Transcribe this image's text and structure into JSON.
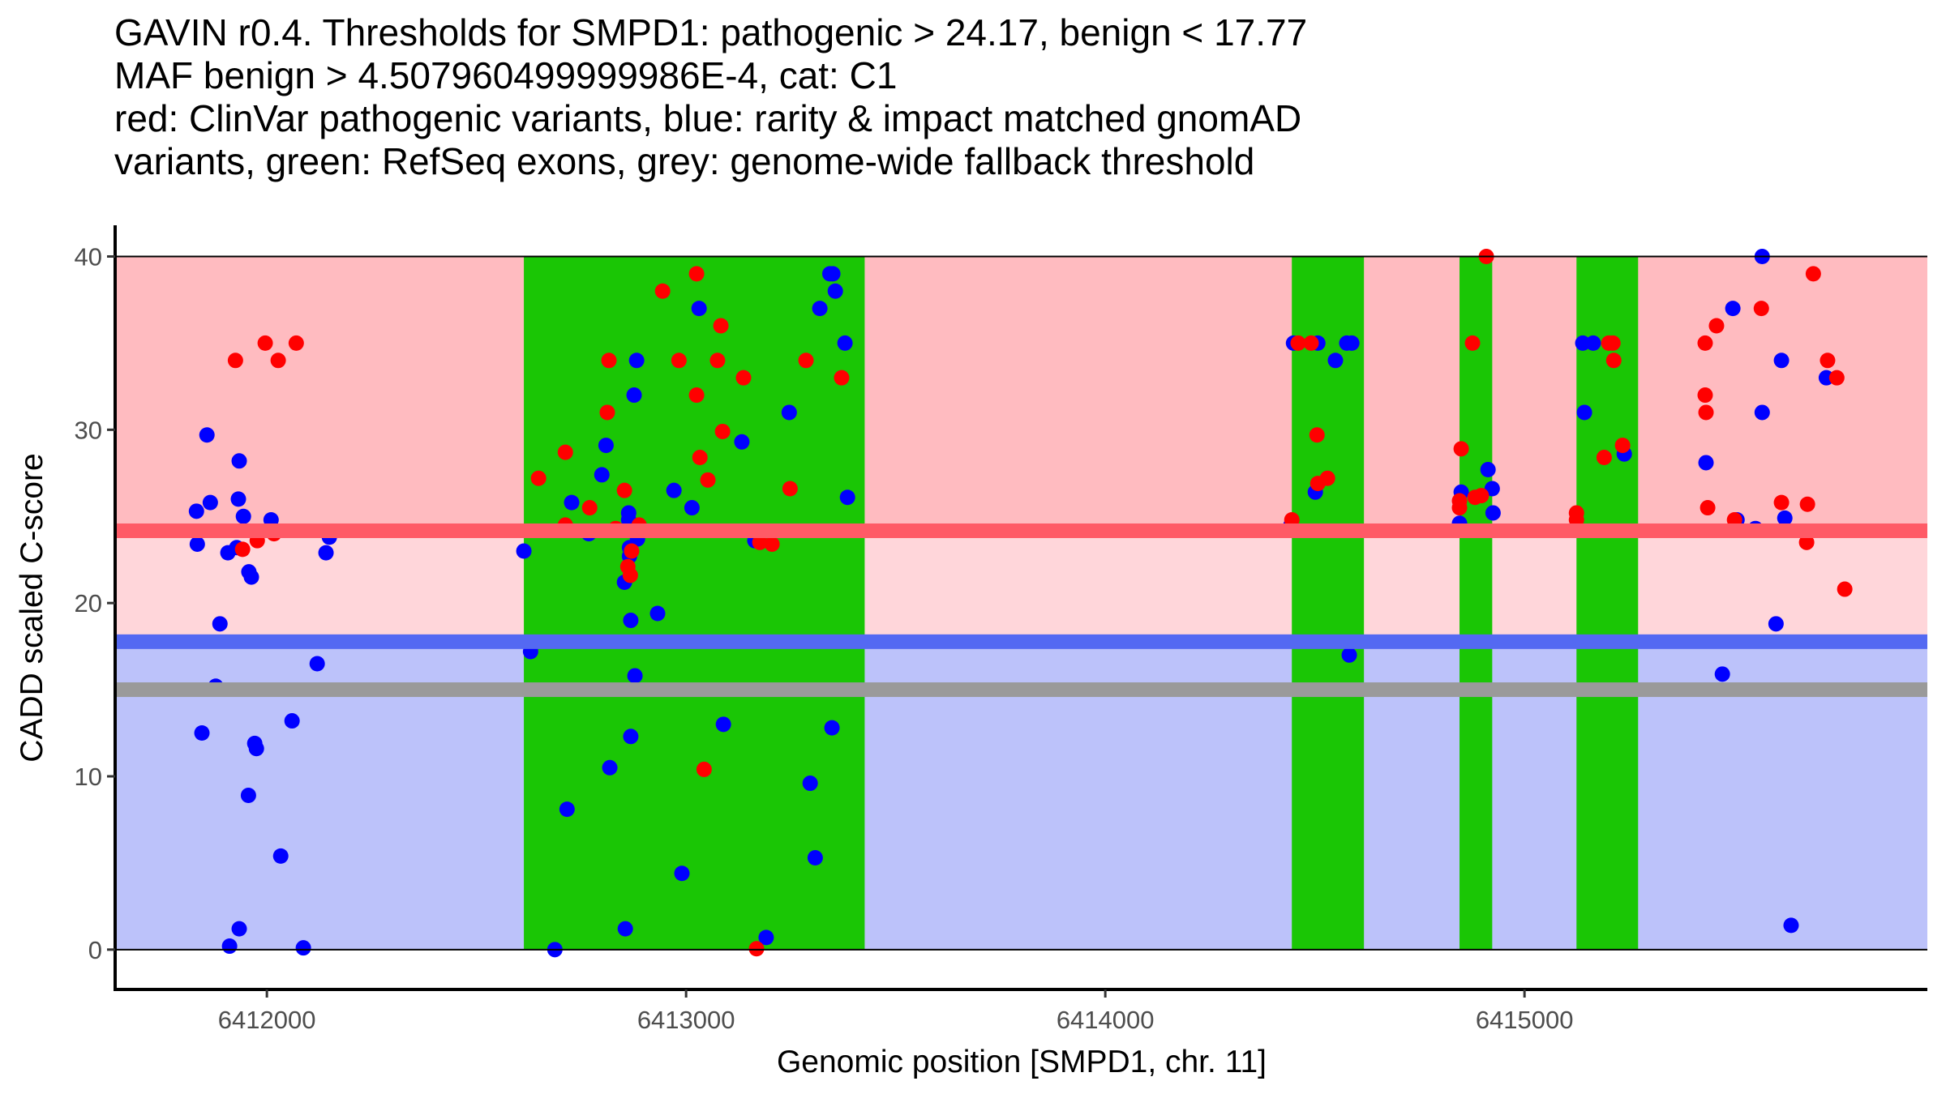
{
  "chart_data": {
    "type": "scatter",
    "title": [
      "GAVIN r0.4. Thresholds for SMPD1: pathogenic > 24.17, benign < 17.77",
      "MAF benign > 4.507960499999986E-4, cat: C1",
      "red: ClinVar pathogenic variants, blue: rarity & impact matched gnomAD",
      "variants, green: RefSeq exons, grey: genome-wide fallback threshold"
    ],
    "xlabel": "Genomic position [SMPD1, chr. 11]",
    "ylabel": "CADD scaled C-score",
    "xlim": [
      6411638,
      6415961
    ],
    "ylim": [
      -2.3,
      41.8
    ],
    "x_ticks": [
      6412000,
      6413000,
      6414000,
      6415000
    ],
    "x_tick_labels": [
      "6412000",
      "6413000",
      "6414000",
      "6415000"
    ],
    "y_ticks": [
      0,
      10,
      20,
      30,
      40
    ],
    "y_tick_labels": [
      "0",
      "10",
      "20",
      "30",
      "40"
    ],
    "grid": false,
    "legend": "none",
    "thresholds": {
      "pathogenic": 24.17,
      "benign": 17.77,
      "genome_wide_fallback": 15.0,
      "score_max": 40,
      "score_min": 0
    },
    "exons": [
      [
        6412613,
        6413426
      ],
      [
        6414445,
        6414617
      ],
      [
        6414845,
        6414923
      ],
      [
        6415124,
        6415271
      ]
    ],
    "colors": {
      "pathogenic_zone": "#FFBBC0",
      "pathogenic_line": "#FF5A66",
      "vus_zone": "#FFD6DA",
      "benign_line": "#5469F2",
      "benign_zone": "#BCC2FA",
      "fallback_line": "#9A9A9A",
      "exon": "#1AC605",
      "pathogenic_point": "#FF0000",
      "population_point": "#0000FF"
    },
    "series": [
      {
        "name": "gnomAD",
        "color": "#0000FF",
        "points": [
          [
            6411857,
            29.7
          ],
          [
            6411934,
            28.2
          ],
          [
            6411865,
            25.8
          ],
          [
            6411832,
            25.3
          ],
          [
            6411932,
            26.0
          ],
          [
            6411944,
            25.0
          ],
          [
            6412010,
            24.8
          ],
          [
            6411834,
            23.4
          ],
          [
            6412149,
            23.8
          ],
          [
            6412141,
            22.9
          ],
          [
            6411928,
            23.2
          ],
          [
            6411907,
            22.9
          ],
          [
            6411957,
            21.8
          ],
          [
            6411963,
            21.5
          ],
          [
            6411888,
            18.8
          ],
          [
            6412120,
            16.5
          ],
          [
            6411878,
            15.2
          ],
          [
            6412060,
            13.2
          ],
          [
            6411845,
            12.5
          ],
          [
            6411971,
            11.9
          ],
          [
            6411975,
            11.6
          ],
          [
            6411956,
            8.9
          ],
          [
            6412033,
            5.4
          ],
          [
            6411934,
            1.2
          ],
          [
            6411911,
            0.2
          ],
          [
            6412087,
            0.1
          ],
          [
            6413031,
            37.0
          ],
          [
            6412882,
            34.0
          ],
          [
            6412876,
            32.0
          ],
          [
            6413246,
            31.0
          ],
          [
            6413133,
            29.3
          ],
          [
            6412809,
            29.1
          ],
          [
            6412799,
            27.4
          ],
          [
            6412971,
            26.5
          ],
          [
            6413385,
            26.1
          ],
          [
            6412727,
            25.8
          ],
          [
            6413014,
            25.5
          ],
          [
            6412863,
            25.2
          ],
          [
            6412863,
            24.8
          ],
          [
            6412768,
            24.0
          ],
          [
            6412884,
            23.7
          ],
          [
            6413164,
            23.6
          ],
          [
            6412865,
            23.2
          ],
          [
            6412613,
            23.0
          ],
          [
            6412865,
            22.7
          ],
          [
            6412853,
            21.2
          ],
          [
            6413350,
            39.0
          ],
          [
            6413343,
            39.0
          ],
          [
            6413356,
            38.0
          ],
          [
            6413319,
            37.0
          ],
          [
            6413379,
            35.0
          ],
          [
            6412868,
            19.0
          ],
          [
            6412932,
            19.4
          ],
          [
            6412629,
            17.2
          ],
          [
            6412878,
            15.8
          ],
          [
            6413089,
            13.0
          ],
          [
            6413348,
            12.8
          ],
          [
            6412868,
            12.3
          ],
          [
            6412818,
            10.5
          ],
          [
            6413296,
            9.6
          ],
          [
            6412716,
            8.1
          ],
          [
            6413308,
            5.3
          ],
          [
            6412990,
            4.4
          ],
          [
            6412855,
            1.2
          ],
          [
            6413191,
            0.7
          ],
          [
            6412687,
            0.0
          ],
          [
            6414449,
            35.0
          ],
          [
            6414507,
            35.0
          ],
          [
            6414576,
            35.0
          ],
          [
            6414588,
            35.0
          ],
          [
            6414549,
            34.0
          ],
          [
            6414501,
            26.4
          ],
          [
            6414443,
            24.5
          ],
          [
            6414582,
            17.0
          ],
          [
            6414913,
            27.7
          ],
          [
            6414923,
            26.6
          ],
          [
            6414849,
            26.4
          ],
          [
            6414925,
            25.2
          ],
          [
            6414845,
            24.6
          ],
          [
            6415139,
            35.0
          ],
          [
            6415164,
            35.0
          ],
          [
            6415143,
            31.0
          ],
          [
            6415238,
            28.6
          ],
          [
            6415567,
            40.0
          ],
          [
            6415497,
            37.0
          ],
          [
            6415613,
            34.0
          ],
          [
            6415720,
            33.0
          ],
          [
            6415567,
            31.0
          ],
          [
            6415433,
            28.1
          ],
          [
            6415507,
            24.8
          ],
          [
            6415621,
            24.9
          ],
          [
            6415551,
            24.3
          ],
          [
            6415600,
            18.8
          ],
          [
            6415472,
            15.9
          ],
          [
            6415636,
            1.4
          ]
        ]
      },
      {
        "name": "ClinVar pathogenic",
        "color": "#FF0000",
        "points": [
          [
            6411996,
            35.0
          ],
          [
            6412070,
            35.0
          ],
          [
            6411925,
            34.0
          ],
          [
            6412027,
            34.0
          ],
          [
            6412017,
            24.0
          ],
          [
            6411977,
            23.6
          ],
          [
            6411942,
            23.1
          ],
          [
            6413025,
            39.0
          ],
          [
            6412944,
            38.0
          ],
          [
            6413083,
            36.0
          ],
          [
            6412816,
            34.0
          ],
          [
            6412983,
            34.0
          ],
          [
            6413075,
            34.0
          ],
          [
            6413286,
            34.0
          ],
          [
            6413137,
            33.0
          ],
          [
            6413371,
            33.0
          ],
          [
            6413025,
            32.0
          ],
          [
            6412812,
            31.0
          ],
          [
            6413087,
            29.9
          ],
          [
            6412712,
            28.7
          ],
          [
            6413033,
            28.4
          ],
          [
            6413052,
            27.1
          ],
          [
            6412648,
            27.2
          ],
          [
            6412853,
            26.5
          ],
          [
            6413248,
            26.6
          ],
          [
            6412770,
            25.5
          ],
          [
            6412712,
            24.5
          ],
          [
            6412888,
            24.5
          ],
          [
            6412832,
            24.3
          ],
          [
            6413176,
            23.5
          ],
          [
            6413205,
            23.4
          ],
          [
            6412870,
            23.0
          ],
          [
            6412861,
            22.1
          ],
          [
            6412867,
            21.6
          ],
          [
            6413043,
            10.4
          ],
          [
            6413168,
            0.05
          ],
          [
            6414460,
            35.0
          ],
          [
            6414491,
            35.0
          ],
          [
            6414505,
            29.7
          ],
          [
            6414530,
            27.2
          ],
          [
            6414507,
            26.9
          ],
          [
            6414445,
            24.8
          ],
          [
            6414909,
            40.0
          ],
          [
            6414876,
            35.0
          ],
          [
            6414849,
            28.9
          ],
          [
            6414897,
            26.2
          ],
          [
            6414882,
            26.1
          ],
          [
            6414845,
            25.9
          ],
          [
            6414845,
            25.5
          ],
          [
            6415201,
            35.0
          ],
          [
            6415211,
            35.0
          ],
          [
            6415213,
            34.0
          ],
          [
            6415234,
            29.1
          ],
          [
            6415190,
            28.4
          ],
          [
            6415124,
            25.2
          ],
          [
            6415124,
            24.8
          ],
          [
            6415689,
            39.0
          ],
          [
            6415565,
            37.0
          ],
          [
            6415458,
            36.0
          ],
          [
            6415431,
            35.0
          ],
          [
            6415723,
            34.0
          ],
          [
            6415745,
            33.0
          ],
          [
            6415431,
            32.0
          ],
          [
            6415433,
            31.0
          ],
          [
            6415437,
            25.5
          ],
          [
            6415613,
            25.8
          ],
          [
            6415675,
            25.7
          ],
          [
            6415501,
            24.8
          ],
          [
            6415673,
            23.5
          ],
          [
            6415764,
            20.8
          ]
        ]
      }
    ]
  }
}
